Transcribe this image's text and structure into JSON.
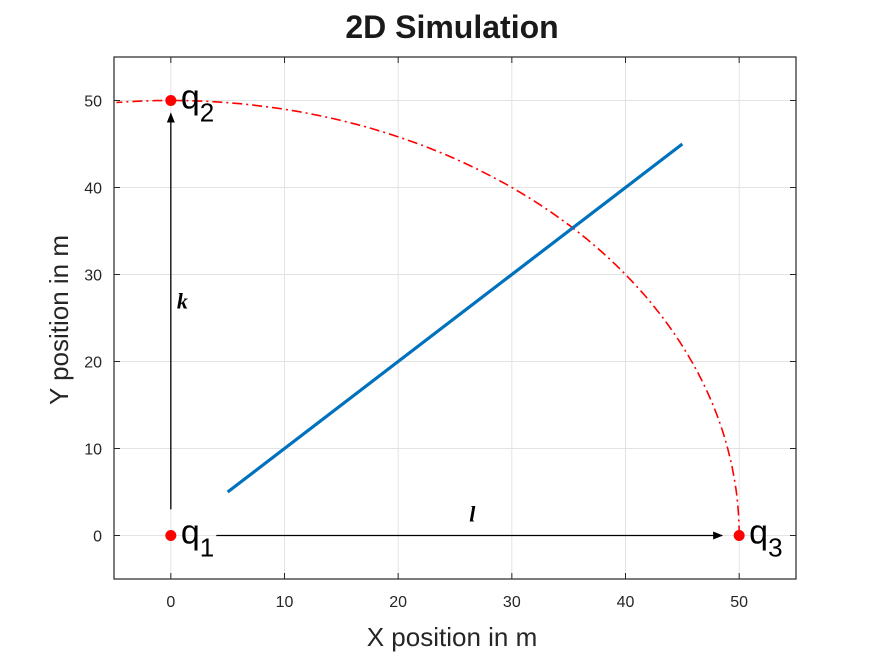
{
  "chart_data": {
    "type": "line",
    "title": "2D Simulation",
    "xlabel": "X position in m",
    "ylabel": "Y position in m",
    "xlim": [
      -5,
      55
    ],
    "ylim": [
      -5,
      55
    ],
    "xticks": [
      0,
      10,
      20,
      30,
      40,
      50
    ],
    "yticks": [
      0,
      10,
      20,
      30,
      40,
      50
    ],
    "grid": true,
    "colors": {
      "path": "#0072BD",
      "arc": "#FF0000",
      "points": "#FF0000",
      "arrows": "#000000"
    },
    "path_line": {
      "x": [
        5,
        45
      ],
      "y": [
        5,
        45
      ]
    },
    "arc": {
      "center": [
        0,
        0
      ],
      "radius": 50,
      "from_deg": 0,
      "to_deg": 180
    },
    "points": [
      {
        "name": "q",
        "sub": "1",
        "x": 0,
        "y": 0
      },
      {
        "name": "q",
        "sub": "2",
        "x": 0,
        "y": 50
      },
      {
        "name": "q",
        "sub": "3",
        "x": 50,
        "y": 0
      }
    ],
    "arrows": [
      {
        "label": "k",
        "from": [
          0,
          3
        ],
        "to": [
          0,
          48.5
        ]
      },
      {
        "label": "l",
        "from": [
          4,
          0
        ],
        "to": [
          48.5,
          0
        ]
      }
    ]
  }
}
